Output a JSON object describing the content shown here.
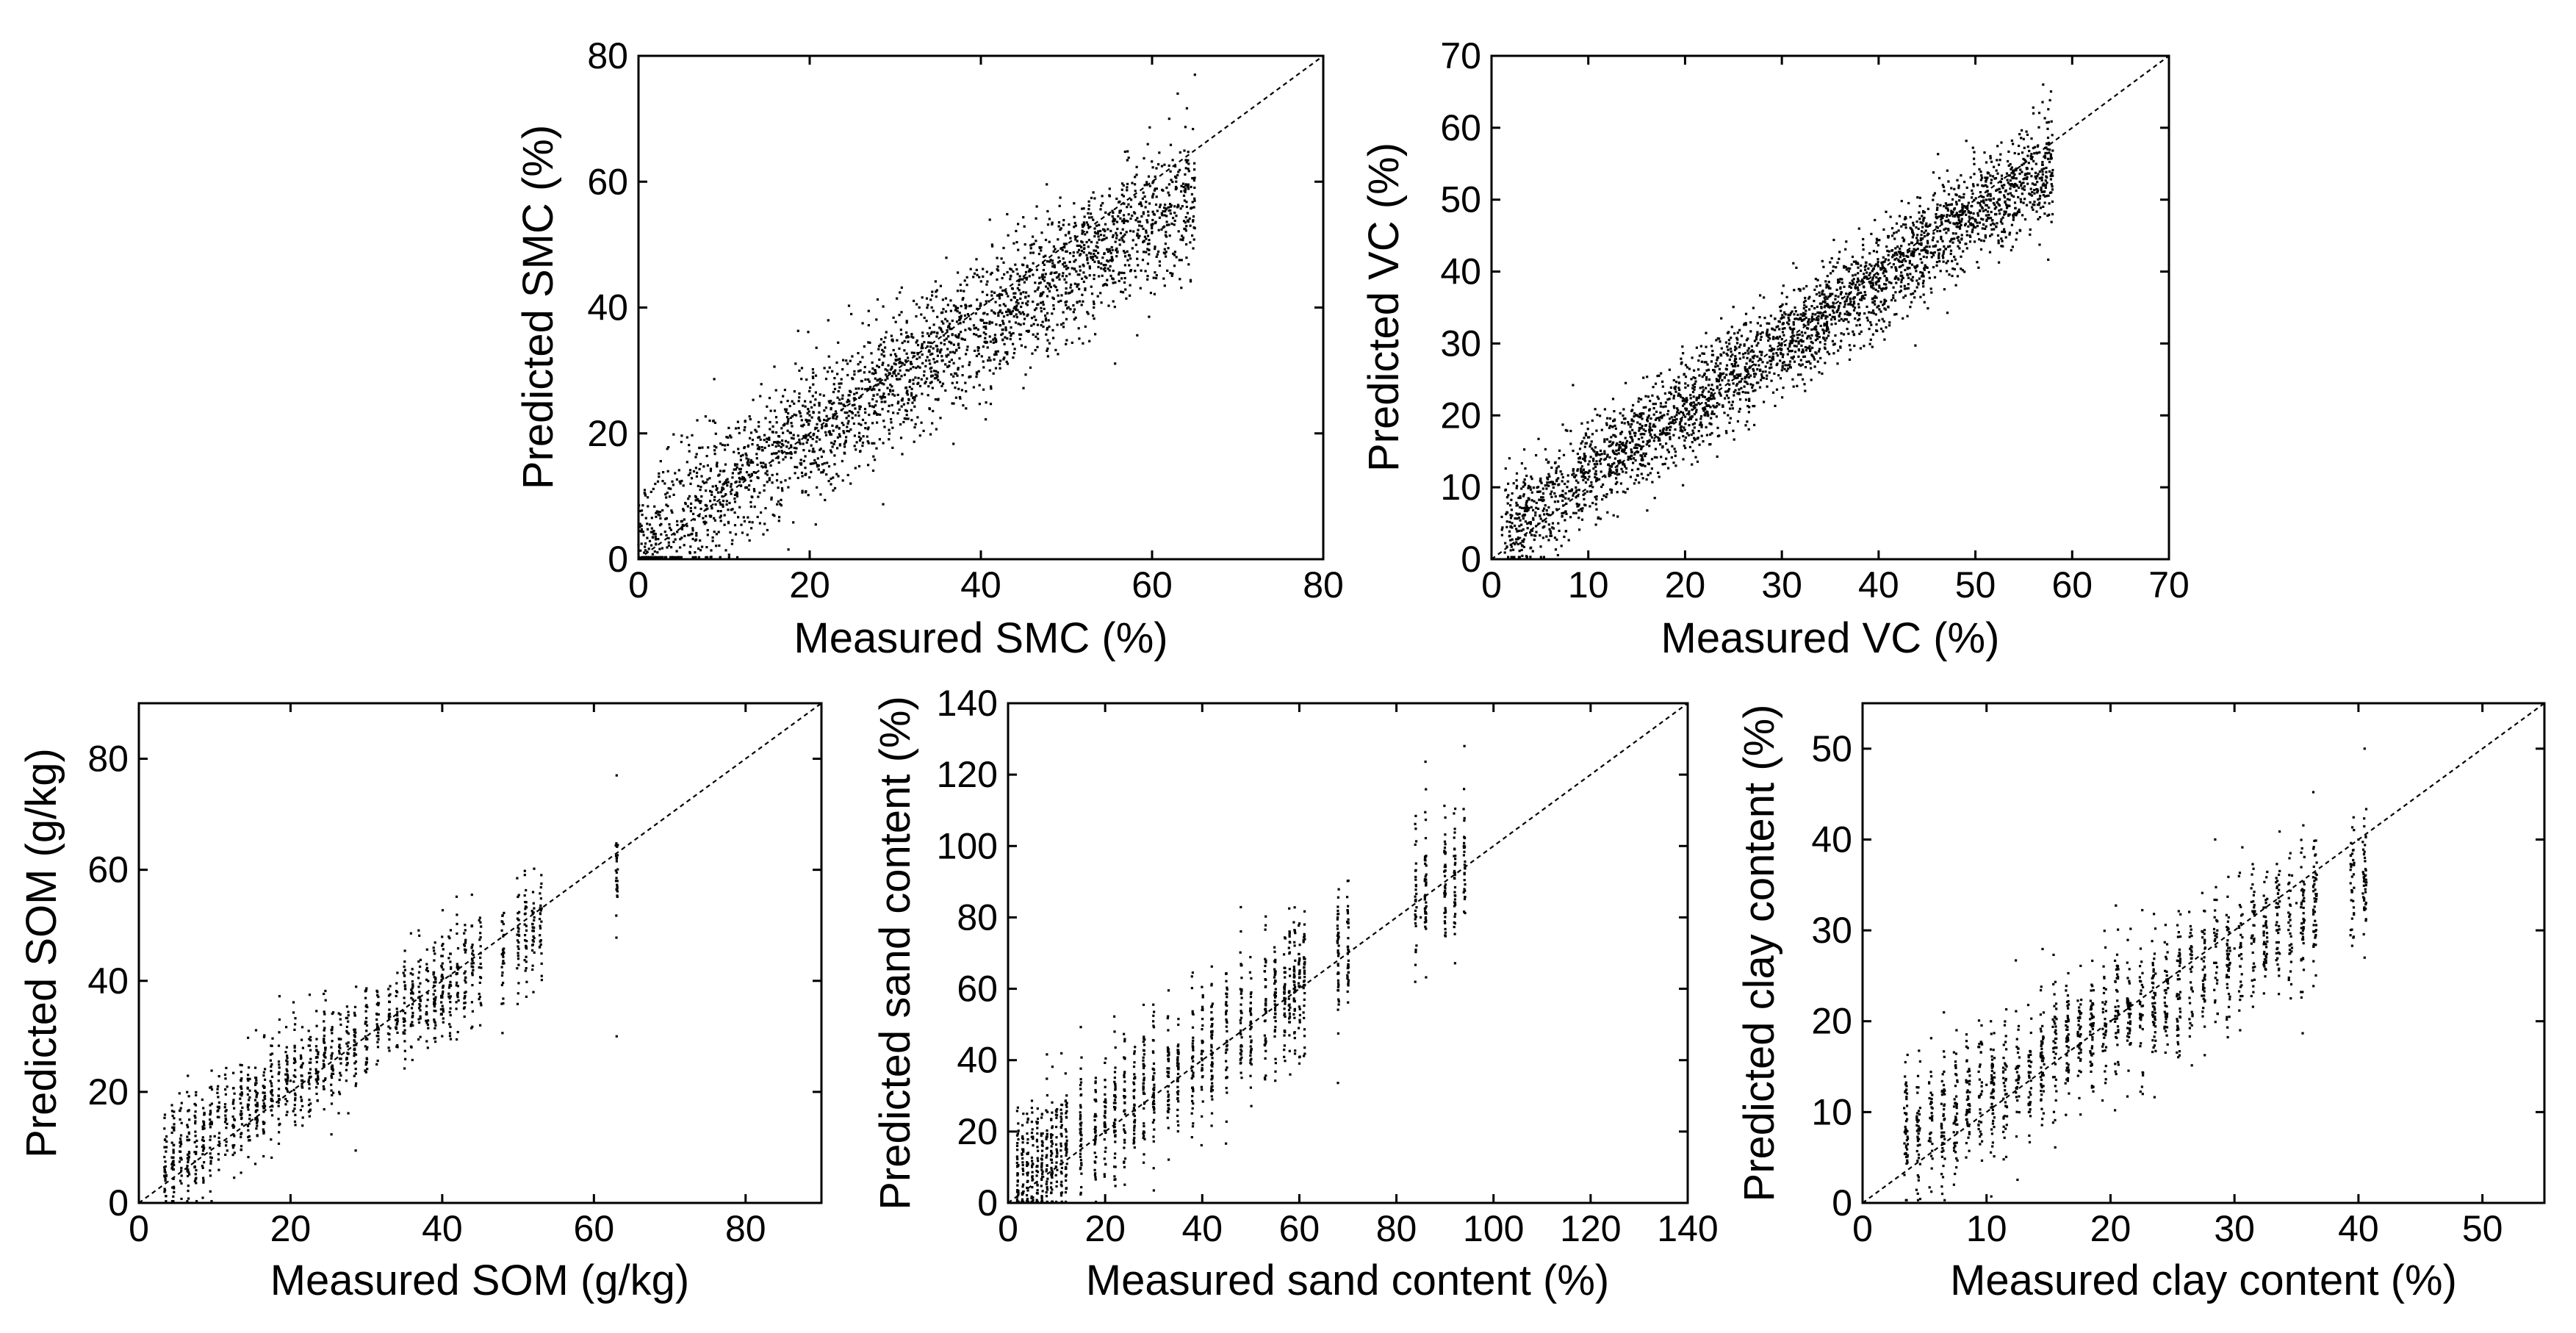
{
  "figure": {
    "description_label": "Measured vs predicted scatter plots for five soil properties"
  },
  "chart_data": [
    {
      "id": "smc",
      "type": "scatter",
      "title": "",
      "xlabel": "Measured SMC (%)",
      "ylabel": "Predicted SMC (%)",
      "xlim": [
        0,
        80
      ],
      "ylim": [
        0,
        80
      ],
      "xticks": [
        0,
        20,
        40,
        60,
        80
      ],
      "yticks": [
        0,
        20,
        40,
        60,
        80
      ],
      "one_to_one_line": true,
      "grid": false,
      "point_color": "#000000",
      "series": [
        {
          "name": "samples",
          "distribution": "continuous",
          "x_range": [
            0,
            65
          ],
          "slope": 0.85,
          "intercept": 3,
          "spread": 5.5,
          "n_points": 2600,
          "points": [
            [
              2,
              4
            ],
            [
              5,
              6
            ],
            [
              10,
              12
            ],
            [
              20,
              22
            ],
            [
              30,
              30
            ],
            [
              40,
              38
            ],
            [
              50,
              45
            ],
            [
              60,
              52
            ],
            [
              62,
              70
            ],
            [
              63,
              74
            ],
            [
              65,
              77
            ]
          ]
        }
      ]
    },
    {
      "id": "vc",
      "type": "scatter",
      "title": "",
      "xlabel": "Measured VC (%)",
      "ylabel": "Predicted VC (%)",
      "xlim": [
        0,
        70
      ],
      "ylim": [
        0,
        70
      ],
      "xticks": [
        0,
        10,
        20,
        30,
        40,
        50,
        60,
        70
      ],
      "yticks": [
        0,
        10,
        20,
        30,
        40,
        50,
        60,
        70
      ],
      "one_to_one_line": true,
      "grid": false,
      "point_color": "#000000",
      "series": [
        {
          "name": "samples",
          "distribution": "continuous",
          "x_range": [
            1,
            58
          ],
          "slope": 0.9,
          "intercept": 3,
          "spread": 3.5,
          "n_points": 3000,
          "points": [
            [
              2,
              2
            ],
            [
              5,
              6
            ],
            [
              10,
              12
            ],
            [
              20,
              22
            ],
            [
              30,
              30
            ],
            [
              40,
              39
            ],
            [
              50,
              47
            ],
            [
              55,
              55
            ],
            [
              56,
              62
            ],
            [
              57,
              66
            ]
          ]
        }
      ]
    },
    {
      "id": "som",
      "type": "scatter",
      "title": "",
      "xlabel": "Measured SOM (g/kg)",
      "ylabel": "Predicted SOM (g/kg)",
      "xlim": [
        0,
        90
      ],
      "ylim": [
        0,
        90
      ],
      "xticks": [
        0,
        20,
        40,
        60,
        80
      ],
      "yticks": [
        0,
        20,
        40,
        60,
        80
      ],
      "one_to_one_line": true,
      "grid": false,
      "point_color": "#000000",
      "series": [
        {
          "name": "samples",
          "distribution": "columns",
          "x_values": [
            3.5,
            4.5,
            5.5,
            6.5,
            7.5,
            8.5,
            9.5,
            10.5,
            11.5,
            12.5,
            13.5,
            14.5,
            15.5,
            16.5,
            17.5,
            18.5,
            19.5,
            20.5,
            21.5,
            22.5,
            23.5,
            24.5,
            25.5,
            26.5,
            27.5,
            28.5,
            30,
            31.5,
            33,
            34,
            35,
            36,
            37,
            38,
            39,
            40,
            41,
            42,
            43,
            44,
            45,
            48,
            50,
            51,
            52,
            53,
            63
          ],
          "slope": 0.85,
          "intercept": 5,
          "spread": 5,
          "n_points": 1300,
          "points": [
            [
              3.5,
              4
            ],
            [
              10,
              12
            ],
            [
              20,
              22
            ],
            [
              30,
              31
            ],
            [
              40,
              37
            ],
            [
              50,
              45
            ],
            [
              63,
              62
            ],
            [
              63,
              77
            ],
            [
              63,
              30
            ]
          ]
        }
      ]
    },
    {
      "id": "sand",
      "type": "scatter",
      "title": "",
      "xlabel": "Measured sand content (%)",
      "ylabel": "Predicted sand content (%)",
      "xlim": [
        0,
        140
      ],
      "ylim": [
        0,
        140
      ],
      "xticks": [
        0,
        20,
        40,
        60,
        80,
        100,
        120,
        140
      ],
      "yticks": [
        0,
        20,
        40,
        60,
        80,
        100,
        120,
        140
      ],
      "one_to_one_line": true,
      "grid": false,
      "point_color": "#000000",
      "series": [
        {
          "name": "samples",
          "distribution": "columns",
          "x_values": [
            2,
            3,
            4,
            5,
            6,
            7,
            8,
            9,
            10,
            11,
            12,
            15,
            18,
            20,
            22,
            24,
            26,
            28,
            30,
            33,
            35,
            38,
            40,
            42,
            45,
            48,
            50,
            53,
            55,
            57,
            58,
            59,
            60,
            61,
            68,
            70,
            84,
            86,
            90,
            92,
            94
          ],
          "slope": 0.95,
          "intercept": 4,
          "spread": 10,
          "n_points": 1500,
          "points": [
            [
              2,
              6
            ],
            [
              10,
              15
            ],
            [
              20,
              22
            ],
            [
              40,
              40
            ],
            [
              60,
              55
            ],
            [
              70,
              70
            ],
            [
              85,
              80
            ],
            [
              94,
              100
            ],
            [
              94,
              128
            ]
          ]
        }
      ]
    },
    {
      "id": "clay",
      "type": "scatter",
      "title": "",
      "xlabel": "Measured clay content (%)",
      "ylabel": "Predicted clay content (%)",
      "xlim": [
        0,
        55
      ],
      "ylim": [
        0,
        55
      ],
      "xticks": [
        0,
        10,
        20,
        30,
        40,
        50
      ],
      "yticks": [
        0,
        10,
        20,
        30,
        40,
        50
      ],
      "one_to_one_line": true,
      "grid": false,
      "point_color": "#000000",
      "series": [
        {
          "name": "samples",
          "distribution": "columns",
          "x_values": [
            3.5,
            4.5,
            5.5,
            6.5,
            7.5,
            8.5,
            9.5,
            10.5,
            11.5,
            12.5,
            13.5,
            14.5,
            15.5,
            16.5,
            17.5,
            18.5,
            19.5,
            20.5,
            21.5,
            22.5,
            23.5,
            24.5,
            25.5,
            26.5,
            27.5,
            28.5,
            29.5,
            30.5,
            31.5,
            32.5,
            33.5,
            34.5,
            35.5,
            36.5,
            39.5,
            40.5
          ],
          "slope": 0.75,
          "intercept": 5,
          "spread": 4,
          "n_points": 1500,
          "points": [
            [
              3.5,
              8
            ],
            [
              10,
              13
            ],
            [
              20,
              20
            ],
            [
              30,
              28
            ],
            [
              35,
              33
            ],
            [
              40,
              40
            ],
            [
              40.5,
              50
            ],
            [
              40.5,
              27
            ]
          ]
        }
      ]
    }
  ]
}
